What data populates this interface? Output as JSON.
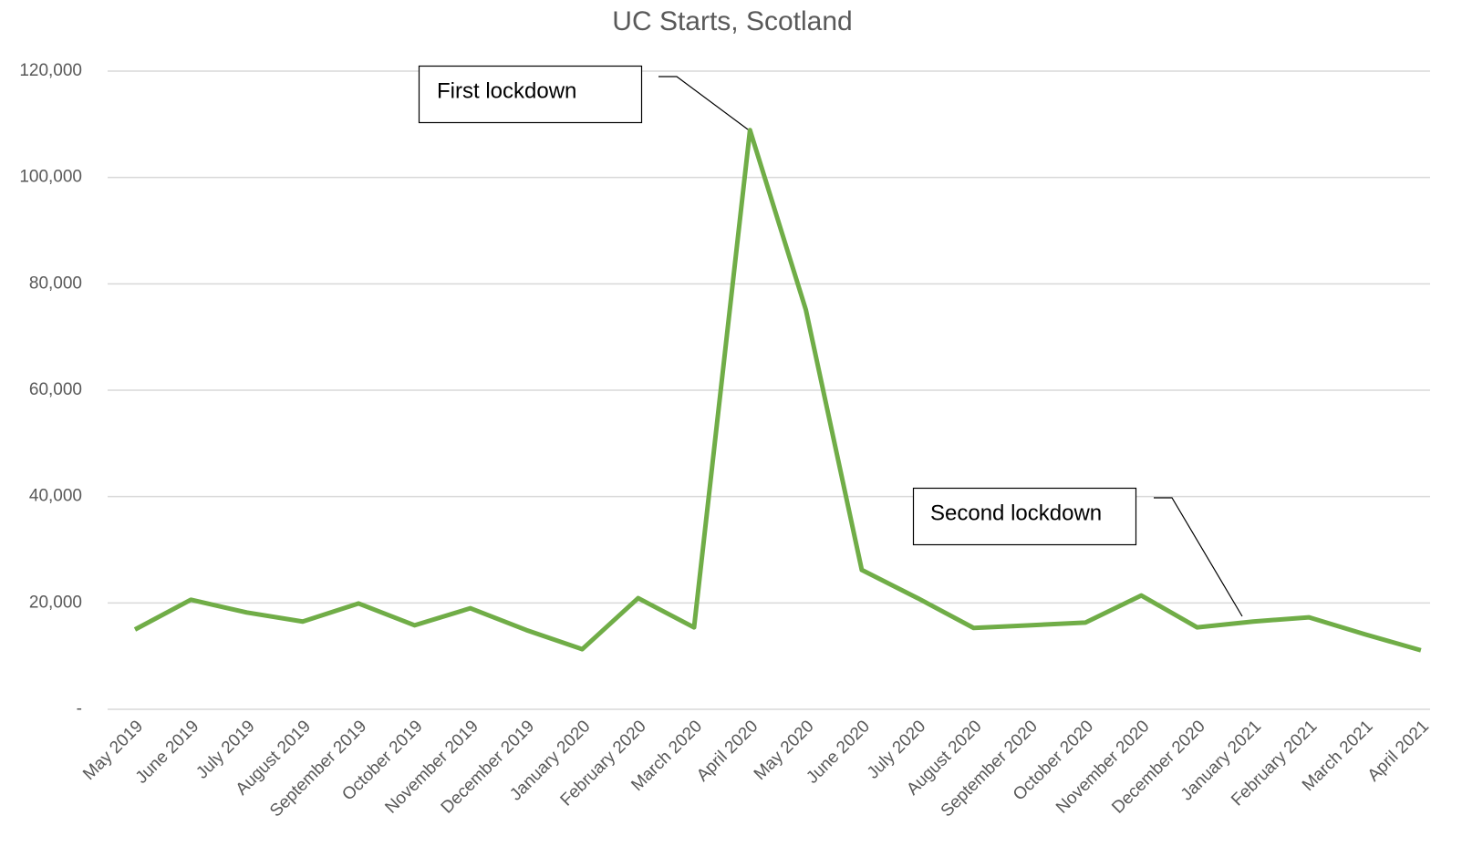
{
  "chart_data": {
    "type": "line",
    "title": "UC Starts, Scotland",
    "categories": [
      "May 2019",
      "June 2019",
      "July 2019",
      "August 2019",
      "September 2019",
      "October 2019",
      "November 2019",
      "December 2019",
      "January 2020",
      "February 2020",
      "March 2020",
      "April 2020",
      "May 2020",
      "June 2020",
      "July 2020",
      "August 2020",
      "September 2020",
      "October 2020",
      "November 2020",
      "December 2020",
      "January 2021",
      "February 2021",
      "March 2021",
      "April 2021"
    ],
    "series": [
      {
        "name": "UC Starts",
        "color": "#70ad47",
        "values": [
          15000,
          20600,
          18200,
          16500,
          19900,
          15800,
          19000,
          14900,
          11300,
          20900,
          15400,
          108900,
          75100,
          26200,
          20900,
          15300,
          15800,
          16300,
          21400,
          15400,
          16500,
          17300,
          14100,
          11100
        ]
      }
    ],
    "ylim": [
      0,
      120000
    ],
    "yticks": [
      {
        "value": 0,
        "label": "-"
      },
      {
        "value": 20000,
        "label": "20,000"
      },
      {
        "value": 40000,
        "label": "40,000"
      },
      {
        "value": 60000,
        "label": "60,000"
      },
      {
        "value": 80000,
        "label": "80,000"
      },
      {
        "value": 100000,
        "label": "100,000"
      },
      {
        "value": 120000,
        "label": "120,000"
      }
    ],
    "grid": true,
    "annotations": [
      "First lockdown",
      "Second lockdown"
    ]
  }
}
